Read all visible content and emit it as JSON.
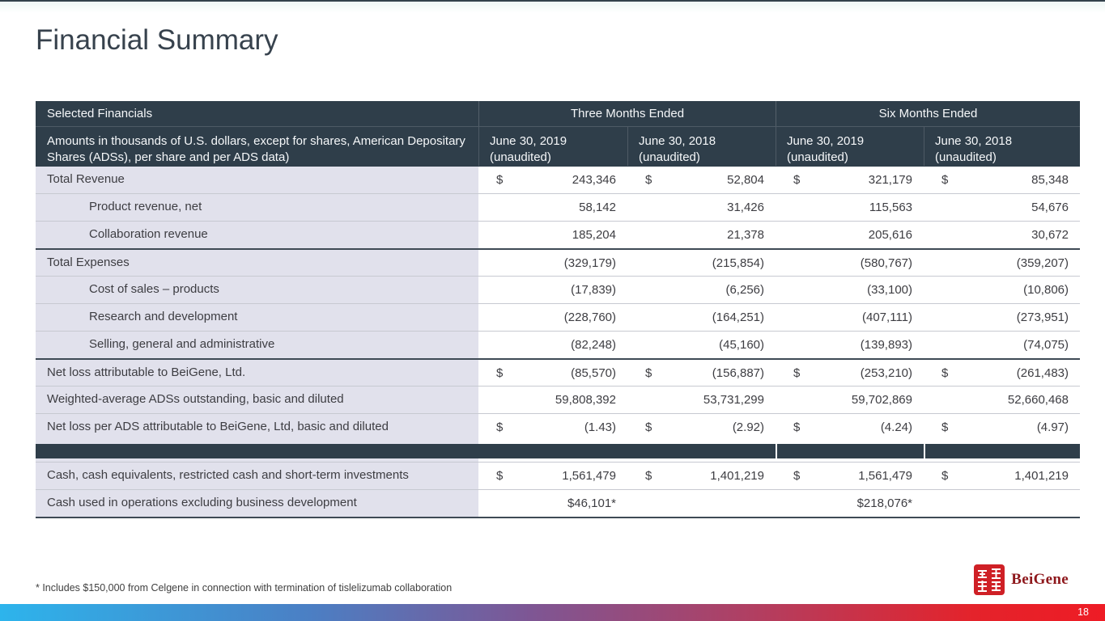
{
  "slide": {
    "title": "Financial Summary",
    "footnote": "* Includes $150,000 from Celgene in connection with termination of tislelizumab collaboration",
    "page_number": "18"
  },
  "logo": {
    "brand": "BeiGene",
    "seal": "beigene-red-seal"
  },
  "colors": {
    "header_bg": "#2f3e4a",
    "label_column_bg": "#e1e1ec",
    "heavy_rule": "#3e4a55",
    "light_rule": "#c7c9d1",
    "brand_red": "#8e181c",
    "bottom_bar_gradient": [
      "#2db4ec",
      "#4b7fc4",
      "#7e5694",
      "#b13f62",
      "#ee1c25"
    ]
  },
  "table": {
    "header": {
      "selected_financials": "Selected Financials",
      "group_three_months": "Three Months Ended",
      "group_six_months": "Six Months Ended",
      "amounts_line1": "Amounts in thousands of U.S. dollars, except for shares, American",
      "amounts_line2": "Depositary Shares (ADSs), per share and per ADS data)",
      "date_cols": [
        {
          "period": "June 30, 2019",
          "note": "(unaudited)"
        },
        {
          "period": "June 30, 2018",
          "note": "(unaudited)"
        },
        {
          "period": "June 30, 2019",
          "note": "(unaudited)"
        },
        {
          "period": "June 30, 2018",
          "note": "(unaudited)"
        }
      ]
    },
    "rows": [
      {
        "type": "data",
        "label": "Total Revenue",
        "indent": false,
        "border": "light",
        "cur": [
          "$",
          "$",
          "$",
          "$"
        ],
        "values": [
          "243,346",
          "52,804",
          "321,179",
          "85,348"
        ]
      },
      {
        "type": "data",
        "label": "Product revenue, net",
        "indent": true,
        "border": "light",
        "cur": [
          "",
          "",
          "",
          ""
        ],
        "values": [
          "58,142",
          "31,426",
          "115,563",
          "54,676"
        ]
      },
      {
        "type": "data",
        "label": "Collaboration revenue",
        "indent": true,
        "border": "light",
        "cur": [
          "",
          "",
          "",
          ""
        ],
        "values": [
          "185,204",
          "21,378",
          "205,616",
          "30,672"
        ]
      },
      {
        "type": "data",
        "label": "Total Expenses",
        "indent": false,
        "border": "heavy",
        "cur": [
          "",
          "",
          "",
          ""
        ],
        "values": [
          "(329,179)",
          "(215,854)",
          "(580,767)",
          "(359,207)"
        ]
      },
      {
        "type": "data",
        "label": "Cost of sales – products",
        "indent": true,
        "border": "light",
        "cur": [
          "",
          "",
          "",
          ""
        ],
        "values": [
          "(17,839)",
          "(6,256)",
          "(33,100)",
          "(10,806)"
        ]
      },
      {
        "type": "data",
        "label": "Research and development",
        "indent": true,
        "border": "light",
        "cur": [
          "",
          "",
          "",
          ""
        ],
        "values": [
          "(228,760)",
          "(164,251)",
          "(407,111)",
          "(273,951)"
        ]
      },
      {
        "type": "data",
        "label": "Selling, general and administrative",
        "indent": true,
        "border": "light",
        "cur": [
          "",
          "",
          "",
          ""
        ],
        "values": [
          "(82,248)",
          "(45,160)",
          "(139,893)",
          "(74,075)"
        ]
      },
      {
        "type": "data",
        "label": "Net loss attributable to BeiGene, Ltd.",
        "indent": false,
        "border": "heavy",
        "cur": [
          "$",
          "$",
          "$",
          "$"
        ],
        "values": [
          "(85,570)",
          "(156,887)",
          "(253,210)",
          "(261,483)"
        ]
      },
      {
        "type": "data",
        "label": "Weighted-average ADSs outstanding, basic and diluted",
        "indent": false,
        "border": "light",
        "cur": [
          "",
          "",
          "",
          ""
        ],
        "values": [
          "59,808,392",
          "53,731,299",
          "59,702,869",
          "52,660,468"
        ]
      },
      {
        "type": "data",
        "label": "Net loss per ADS attributable to BeiGene, Ltd, basic and diluted",
        "indent": false,
        "border": "light",
        "cur": [
          "$",
          "$",
          "$",
          "$"
        ],
        "values": [
          "(1.43)",
          "(2.92)",
          "(4.24)",
          "(4.97)"
        ]
      },
      {
        "type": "gap"
      },
      {
        "type": "bar"
      },
      {
        "type": "gap"
      },
      {
        "type": "data",
        "label": "Cash, cash equivalents, restricted cash and short-term investments",
        "indent": false,
        "border": "light",
        "cur": [
          "$",
          "$",
          "$",
          "$"
        ],
        "values": [
          "1,561,479",
          "1,401,219",
          "1,561,479",
          "1,401,219"
        ]
      },
      {
        "type": "data",
        "label": "Cash used in operations excluding business development",
        "indent": false,
        "border": "light",
        "cur": [
          "",
          "",
          "",
          ""
        ],
        "values": [
          "$46,101*",
          "",
          "$218,076*",
          ""
        ]
      }
    ]
  }
}
